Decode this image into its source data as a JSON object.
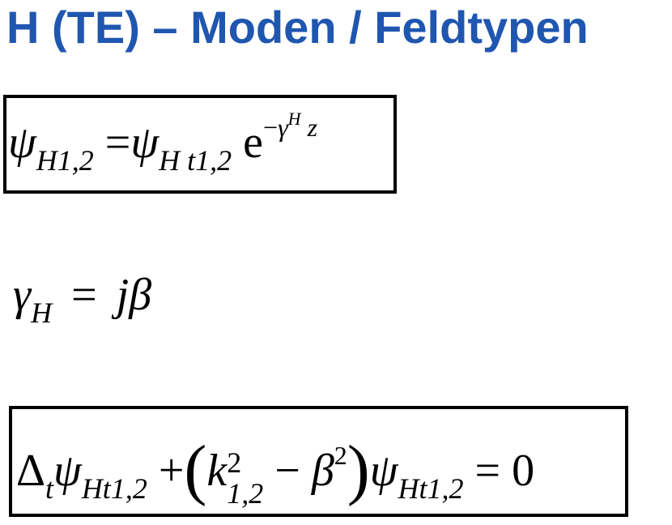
{
  "slide": {
    "title": "H (TE) – Moden / Feldtypen",
    "title_color": "#1f56b0"
  },
  "eq1": {
    "lhs_sym": "ψ",
    "lhs_sub": "H1,2",
    "eq": "=",
    "rhs_sym": "ψ",
    "rhs_sub": "H t1,2",
    "exp_base": "e",
    "exp_minus": "−",
    "exp_gamma": "γ",
    "exp_gamma_sub": "H",
    "exp_z": "z"
  },
  "eq2": {
    "gamma": "γ",
    "gamma_sub": "H",
    "eq": "=",
    "j": "j",
    "beta": "β"
  },
  "eq3": {
    "delta": "Δ",
    "delta_sub": "t",
    "psi1": "ψ",
    "psi1_sub": "Ht1,2",
    "plus": "+",
    "lparen": "(",
    "k": "k",
    "k_sup": "2",
    "k_sub": "1,2",
    "minus": "−",
    "beta": "β",
    "beta_sup": "2",
    "rparen": ")",
    "psi2": "ψ",
    "psi2_sub": "Ht1,2",
    "eq": "=",
    "zero": "0"
  }
}
